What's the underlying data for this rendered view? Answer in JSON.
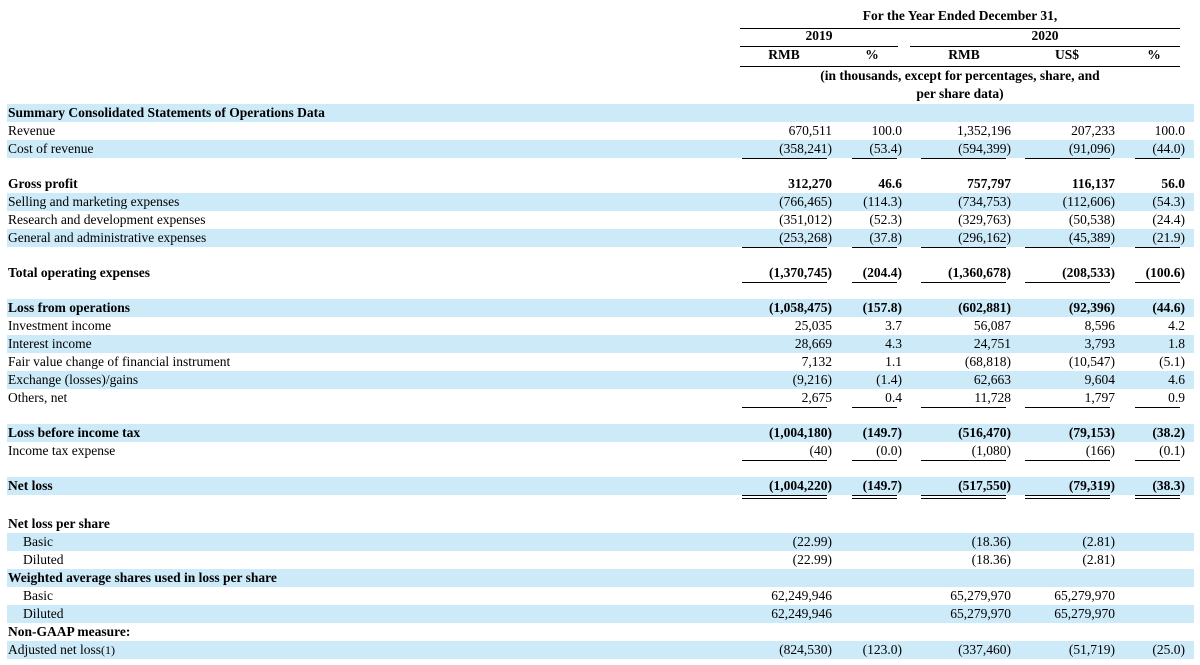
{
  "header": {
    "period_title": "For the Year Ended December 31,",
    "year_2019": "2019",
    "year_2020": "2020",
    "columns": [
      "RMB",
      "%",
      "RMB",
      "US$",
      "%"
    ],
    "units_note_line1": "(in thousands, except for percentages, share, and",
    "units_note_line2": "per share data)"
  },
  "rows": [
    {
      "label": "Summary Consolidated Statements of Operations Data",
      "bold": true,
      "shade": true,
      "values": [
        "",
        "",
        "",
        "",
        ""
      ]
    },
    {
      "label": "Revenue",
      "values": [
        "670,511",
        "100.0",
        "1,352,196",
        "207,233",
        "100.0"
      ]
    },
    {
      "label": "Cost of revenue",
      "shade": true,
      "values": [
        "(358,241)",
        "(53.4)",
        "(594,399)",
        "(91,096)",
        "(44.0)"
      ],
      "underline": true
    },
    {
      "label": "Gross profit",
      "bold": true,
      "values": [
        "312,270",
        "46.6",
        "757,797",
        "116,137",
        "56.0"
      ]
    },
    {
      "label": "Selling and marketing expenses",
      "shade": true,
      "values": [
        "(766,465)",
        "(114.3)",
        "(734,753)",
        "(112,606)",
        "(54.3)"
      ]
    },
    {
      "label": "Research and development expenses",
      "values": [
        "(351,012)",
        "(52.3)",
        "(329,763)",
        "(50,538)",
        "(24.4)"
      ]
    },
    {
      "label": "General and administrative expenses",
      "shade": true,
      "values": [
        "(253,268)",
        "(37.8)",
        "(296,162)",
        "(45,389)",
        "(21.9)"
      ],
      "underline": true
    },
    {
      "label": "Total operating expenses",
      "bold": true,
      "values": [
        "(1,370,745)",
        "(204.4)",
        "(1,360,678)",
        "(208,533)",
        "(100.6)"
      ],
      "underline": true
    },
    {
      "label": "Loss from operations",
      "bold": true,
      "shade": true,
      "values": [
        "(1,058,475)",
        "(157.8)",
        "(602,881)",
        "(92,396)",
        "(44.6)"
      ]
    },
    {
      "label": "Investment income",
      "values": [
        "25,035",
        "3.7",
        "56,087",
        "8,596",
        "4.2"
      ]
    },
    {
      "label": "Interest income",
      "shade": true,
      "values": [
        "28,669",
        "4.3",
        "24,751",
        "3,793",
        "1.8"
      ]
    },
    {
      "label": "Fair value change of financial instrument",
      "values": [
        "7,132",
        "1.1",
        "(68,818)",
        "(10,547)",
        "(5.1)"
      ]
    },
    {
      "label": "Exchange (losses)/gains",
      "shade": true,
      "values": [
        "(9,216)",
        "(1.4)",
        "62,663",
        "9,604",
        "4.6"
      ]
    },
    {
      "label": "Others, net",
      "values": [
        "2,675",
        "0.4",
        "11,728",
        "1,797",
        "0.9"
      ],
      "underline": true
    },
    {
      "label": "Loss before income tax",
      "bold": true,
      "shade": true,
      "values": [
        "(1,004,180)",
        "(149.7)",
        "(516,470)",
        "(79,153)",
        "(38.2)"
      ]
    },
    {
      "label": "Income tax expense",
      "values": [
        "(40)",
        "(0.0)",
        "(1,080)",
        "(166)",
        "(0.1)"
      ],
      "underline": true
    },
    {
      "label": "Net loss",
      "bold": true,
      "shade": true,
      "values": [
        "(1,004,220)",
        "(149.7)",
        "(517,550)",
        "(79,319)",
        "(38.3)"
      ],
      "double_underline": true
    },
    {
      "label": "Net loss per share",
      "bold": true,
      "values": [
        "",
        "",
        "",
        "",
        ""
      ]
    },
    {
      "label": "Basic",
      "indent": true,
      "shade": true,
      "values": [
        "(22.99)",
        "",
        "(18.36)",
        "(2.81)",
        ""
      ]
    },
    {
      "label": "Diluted",
      "indent": true,
      "values": [
        "(22.99)",
        "",
        "(18.36)",
        "(2.81)",
        ""
      ]
    },
    {
      "label": "Weighted average shares used in loss per share",
      "bold": true,
      "shade": true,
      "values": [
        "",
        "",
        "",
        "",
        ""
      ]
    },
    {
      "label": "Basic",
      "indent": true,
      "values": [
        "62,249,946",
        "",
        "65,279,970",
        "65,279,970",
        ""
      ]
    },
    {
      "label": "Diluted",
      "indent": true,
      "shade": true,
      "values": [
        "62,249,946",
        "",
        "65,279,970",
        "65,279,970",
        ""
      ]
    },
    {
      "label": "Non-GAAP measure:",
      "bold": true,
      "values": [
        "",
        "",
        "",
        "",
        ""
      ]
    },
    {
      "label": "Adjusted net loss",
      "footnote": "(1)",
      "shade": true,
      "values": [
        "(824,530)",
        "(123.0)",
        "(337,460)",
        "(51,719)",
        "(25.0)"
      ]
    }
  ]
}
